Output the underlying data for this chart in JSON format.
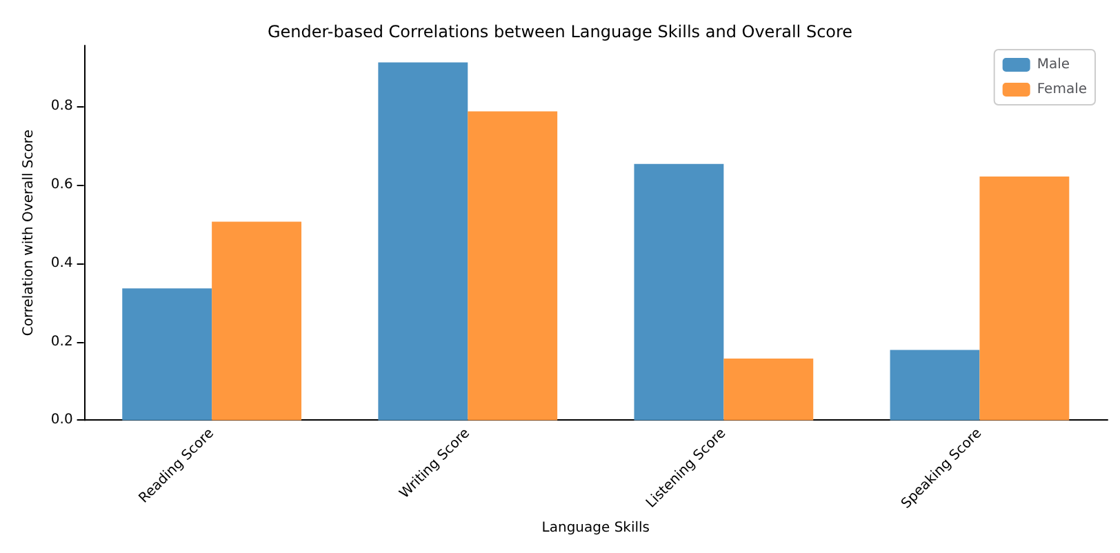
{
  "chart_data": {
    "type": "bar",
    "title": "Gender-based Correlations between Language Skills and Overall Score",
    "xlabel": "Language Skills",
    "ylabel": "Correlation with Overall Score",
    "categories": [
      "Reading Score",
      "Writing Score",
      "Listening Score",
      "Speaking Score"
    ],
    "series": [
      {
        "name": "Male",
        "color": "#4c92c3",
        "values": [
          0.336,
          0.912,
          0.653,
          0.179
        ]
      },
      {
        "name": "Female",
        "color": "#ff983e",
        "values": [
          0.506,
          0.787,
          0.157,
          0.621
        ]
      }
    ],
    "ylim": [
      0,
      0.955
    ],
    "yticks": [
      {
        "value": 0,
        "label": "0.0"
      },
      {
        "value": 0.2,
        "label": "0.2"
      },
      {
        "value": 0.4,
        "label": "0.4"
      },
      {
        "value": 0.6,
        "label": "0.6"
      },
      {
        "value": 0.8,
        "label": "0.8"
      }
    ],
    "grid": false,
    "legend": "top right"
  }
}
